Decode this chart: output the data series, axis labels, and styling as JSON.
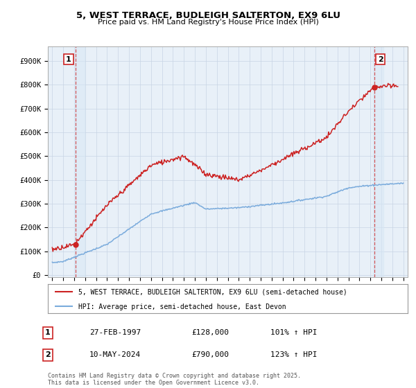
{
  "title1": "5, WEST TERRACE, BUDLEIGH SALTERTON, EX9 6LU",
  "title2": "Price paid vs. HM Land Registry's House Price Index (HPI)",
  "ylabel_ticks": [
    "£0",
    "£100K",
    "£200K",
    "£300K",
    "£400K",
    "£500K",
    "£600K",
    "£700K",
    "£800K",
    "£900K"
  ],
  "ytick_vals": [
    0,
    100000,
    200000,
    300000,
    400000,
    500000,
    600000,
    700000,
    800000,
    900000
  ],
  "xlim": [
    1994.6,
    2027.4
  ],
  "ylim": [
    -10000,
    960000
  ],
  "sale1_x": 1997.15,
  "sale1_y": 128000,
  "sale2_x": 2024.37,
  "sale2_y": 790000,
  "hpi_color": "#7aabdc",
  "price_color": "#cc2222",
  "plot_bg_color": "#e8f0f8",
  "grid_color": "#c8d4e4",
  "legend_line1": "5, WEST TERRACE, BUDLEIGH SALTERTON, EX9 6LU (semi-detached house)",
  "legend_line2": "HPI: Average price, semi-detached house, East Devon",
  "table_row1": [
    "1",
    "27-FEB-1997",
    "£128,000",
    "101% ↑ HPI"
  ],
  "table_row2": [
    "2",
    "10-MAY-2024",
    "£790,000",
    "123% ↑ HPI"
  ],
  "footnote": "Contains HM Land Registry data © Crown copyright and database right 2025.\nThis data is licensed under the Open Government Licence v3.0.",
  "background_color": "#ffffff"
}
